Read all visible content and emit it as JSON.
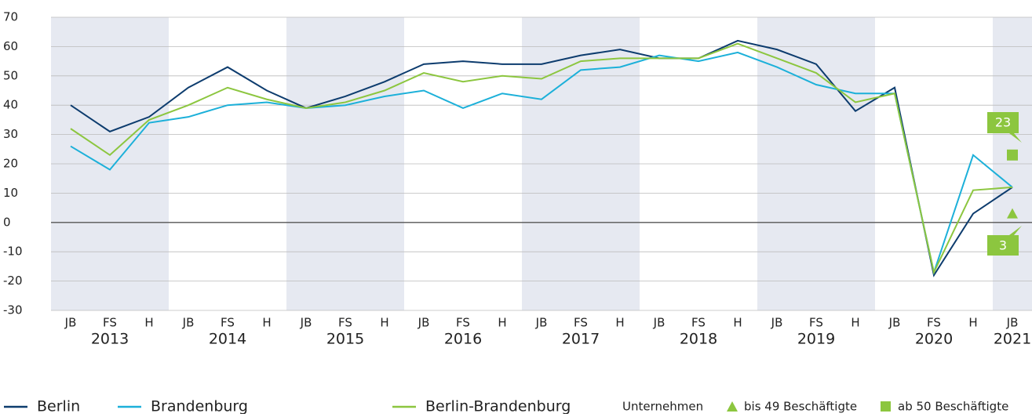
{
  "chart_data": {
    "type": "line",
    "categories": [
      "JB",
      "FS",
      "H",
      "JB",
      "FS",
      "H",
      "JB",
      "FS",
      "H",
      "JB",
      "FS",
      "H",
      "JB",
      "FS",
      "H",
      "JB",
      "FS",
      "H",
      "JB",
      "FS",
      "H",
      "JB",
      "FS",
      "H",
      "JB"
    ],
    "years": [
      "2013",
      "2014",
      "2015",
      "2016",
      "2017",
      "2018",
      "2019",
      "2020",
      "2021"
    ],
    "ylim": [
      -30,
      70
    ],
    "yticks": [
      -30,
      -20,
      -10,
      0,
      10,
      20,
      30,
      40,
      50,
      60,
      70
    ],
    "grid": true,
    "series": [
      {
        "name": "Berlin",
        "color": "#0d3c6e",
        "values": [
          40,
          31,
          36,
          46,
          53,
          45,
          39,
          43,
          48,
          54,
          55,
          54,
          54,
          57,
          59,
          56,
          56,
          62,
          59,
          54,
          38,
          46,
          -18,
          3,
          12
        ]
      },
      {
        "name": "Brandenburg",
        "color": "#1cb0d9",
        "values": [
          26,
          18,
          34,
          36,
          40,
          41,
          39,
          40,
          43,
          45,
          39,
          44,
          42,
          52,
          53,
          57,
          55,
          58,
          53,
          47,
          44,
          44,
          -17,
          23,
          12
        ]
      },
      {
        "name": "Berlin-Brandenburg",
        "color": "#8cc63f",
        "values": [
          32,
          23,
          35,
          40,
          46,
          42,
          39,
          41,
          45,
          51,
          48,
          50,
          49,
          55,
          56,
          56,
          56,
          61,
          56,
          51,
          41,
          44,
          -17,
          11,
          12
        ]
      }
    ],
    "legend_prefix": "Unternehmen",
    "markers": [
      {
        "name": "bis 49 Beschäftigte",
        "shape": "triangle",
        "color": "#8cc63f",
        "value": 3
      },
      {
        "name": "ab 50 Beschäftigte",
        "shape": "square",
        "color": "#8cc63f",
        "value": 23
      }
    ]
  }
}
